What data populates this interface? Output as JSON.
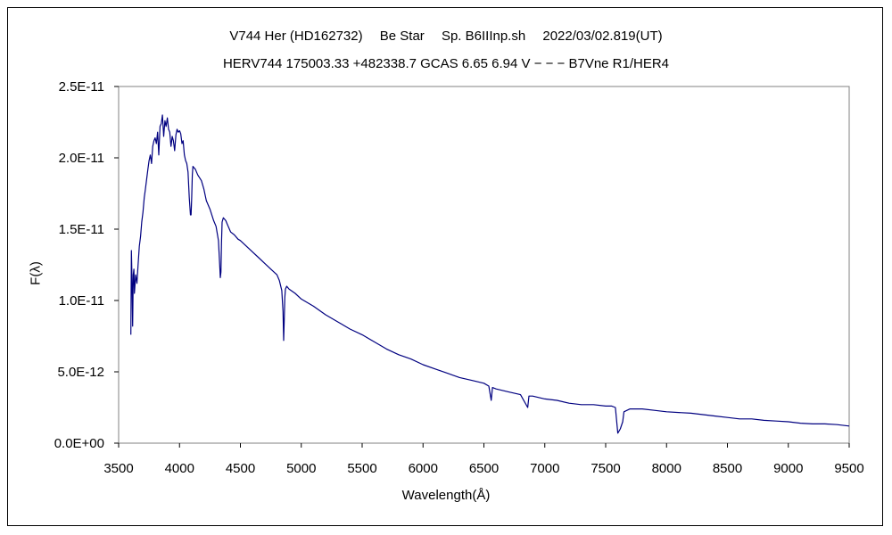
{
  "chart_data": {
    "type": "line",
    "title": "V744 Her (HD162732)　 Be Star　 Sp. B6IIInp.sh　 2022/03/02.819(UT)",
    "subtitle": "HERV744 175003.33 +482338.7 GCAS 6.65 6.94 V − − − B7Vne R1/HER4",
    "xlabel": "Wavelength(Å)",
    "ylabel": "F(λ)",
    "xlim": [
      3500,
      9500
    ],
    "ylim": [
      0,
      2.5e-11
    ],
    "xticks": [
      "3500",
      "4000",
      "4500",
      "5000",
      "5500",
      "6000",
      "6500",
      "7000",
      "7500",
      "8000",
      "8500",
      "9000",
      "9500"
    ],
    "yticks": [
      "0.0E+00",
      "5.0E-12",
      "1.0E-11",
      "1.5E-11",
      "2.0E-11",
      "2.5E-11"
    ],
    "grid": false,
    "line_color": "#000080",
    "series": [
      {
        "x": [
          3600,
          3605,
          3610,
          3615,
          3620,
          3625,
          3630,
          3640,
          3650,
          3660,
          3670,
          3680,
          3690,
          3700,
          3710,
          3720,
          3730,
          3740,
          3750,
          3760,
          3770,
          3780,
          3790,
          3800,
          3810,
          3820,
          3830,
          3840,
          3850,
          3860,
          3870,
          3880,
          3890,
          3900,
          3910,
          3920,
          3930,
          3940,
          3950,
          3960,
          3970,
          3980,
          3990,
          4000,
          4010,
          4020,
          4030,
          4040,
          4050,
          4060,
          4070,
          4080,
          4090,
          4095,
          4100,
          4105,
          4110,
          4120,
          4130,
          4150,
          4180,
          4200,
          4220,
          4250,
          4280,
          4300,
          4320,
          4330,
          4335,
          4340,
          4345,
          4350,
          4360,
          4380,
          4400,
          4420,
          4450,
          4480,
          4500,
          4550,
          4600,
          4650,
          4700,
          4750,
          4800,
          4820,
          4840,
          4850,
          4855,
          4860,
          4865,
          4870,
          4880,
          4900,
          4950,
          5000,
          5100,
          5200,
          5300,
          5400,
          5500,
          5600,
          5700,
          5800,
          5900,
          6000,
          6100,
          6200,
          6300,
          6400,
          6500,
          6540,
          6560,
          6570,
          6600,
          6700,
          6800,
          6860,
          6870,
          6880,
          6900,
          7000,
          7100,
          7200,
          7300,
          7400,
          7500,
          7550,
          7580,
          7600,
          7620,
          7640,
          7650,
          7700,
          7800,
          7900,
          8000,
          8200,
          8400,
          8500,
          8600,
          8700,
          8800,
          8900,
          9000,
          9100,
          9200,
          9300,
          9400,
          9500
        ],
        "y": [
          7.6e-12,
          1.35e-11,
          1.15e-11,
          8.2e-12,
          1.18e-11,
          1.22e-11,
          1.05e-11,
          1.18e-11,
          1.12e-11,
          1.25e-11,
          1.38e-11,
          1.45e-11,
          1.55e-11,
          1.62e-11,
          1.72e-11,
          1.78e-11,
          1.85e-11,
          1.92e-11,
          1.98e-11,
          2.02e-11,
          1.96e-11,
          2.08e-11,
          2.12e-11,
          2.14e-11,
          2.1e-11,
          2.18e-11,
          2.02e-11,
          2.22e-11,
          2.24e-11,
          2.3e-11,
          2.15e-11,
          2.26e-11,
          2.22e-11,
          2.28e-11,
          2.2e-11,
          2.18e-11,
          2.08e-11,
          2.15e-11,
          2.12e-11,
          2.05e-11,
          2.16e-11,
          2.2e-11,
          2.18e-11,
          2.19e-11,
          2.17e-11,
          2.1e-11,
          2.12e-11,
          2.02e-11,
          1.98e-11,
          1.96e-11,
          1.9e-11,
          1.72e-11,
          1.6e-11,
          1.6e-11,
          1.72e-11,
          1.88e-11,
          1.94e-11,
          1.93e-11,
          1.92e-11,
          1.88e-11,
          1.84e-11,
          1.78e-11,
          1.7e-11,
          1.64e-11,
          1.56e-11,
          1.52e-11,
          1.42e-11,
          1.25e-11,
          1.16e-11,
          1.2e-11,
          1.4e-11,
          1.55e-11,
          1.58e-11,
          1.56e-11,
          1.52e-11,
          1.48e-11,
          1.46e-11,
          1.43e-11,
          1.42e-11,
          1.38e-11,
          1.34e-11,
          1.3e-11,
          1.26e-11,
          1.22e-11,
          1.18e-11,
          1.14e-11,
          1.07e-11,
          9.2e-12,
          7.2e-12,
          8.5e-12,
          1.02e-11,
          1.08e-11,
          1.1e-11,
          1.08e-11,
          1.05e-11,
          1.01e-11,
          9.6e-12,
          9e-12,
          8.5e-12,
          8e-12,
          7.6e-12,
          7.1e-12,
          6.6e-12,
          6.2e-12,
          5.9e-12,
          5.5e-12,
          5.2e-12,
          4.9e-12,
          4.6e-12,
          4.4e-12,
          4.2e-12,
          4e-12,
          3e-12,
          3.9e-12,
          3.8e-12,
          3.6e-12,
          3.4e-12,
          2.5e-12,
          3.3e-12,
          3.3e-12,
          3.3e-12,
          3.1e-12,
          3e-12,
          2.8e-12,
          2.7e-12,
          2.7e-12,
          2.6e-12,
          2.6e-12,
          2.5e-12,
          7e-13,
          1e-12,
          1.5e-12,
          2.2e-12,
          2.4e-12,
          2.4e-12,
          2.3e-12,
          2.2e-12,
          2.1e-12,
          1.9e-12,
          1.8e-12,
          1.7e-12,
          1.7e-12,
          1.6e-12,
          1.55e-12,
          1.5e-12,
          1.4e-12,
          1.35e-12,
          1.35e-12,
          1.3e-12,
          1.2e-12
        ]
      }
    ]
  }
}
